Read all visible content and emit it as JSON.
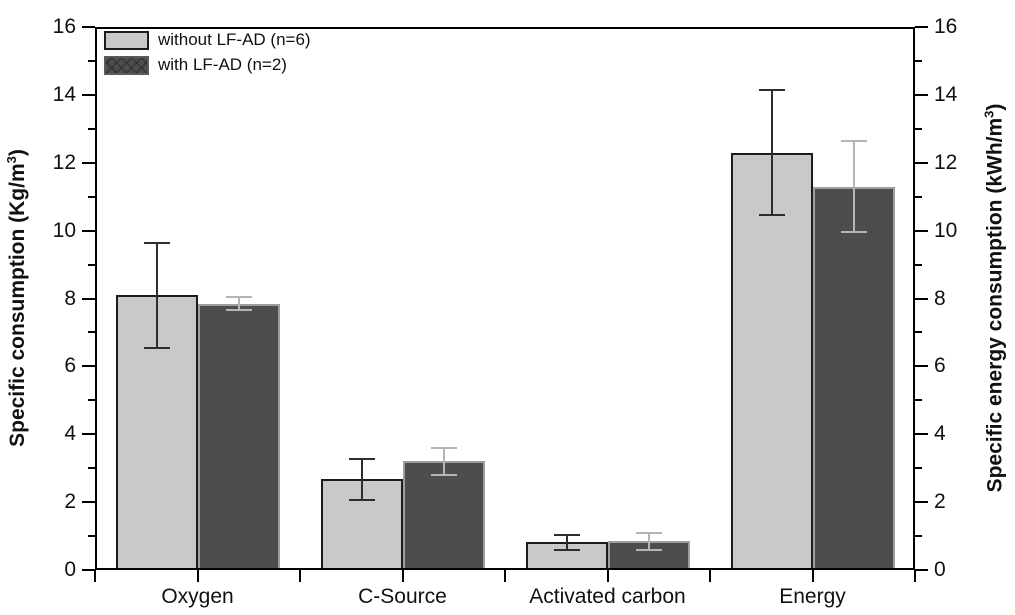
{
  "figure": {
    "background_color": "#ffffff",
    "axis_color": "#000000"
  },
  "chart_data": {
    "type": "bar",
    "title": "",
    "categories": [
      "Oxygen",
      "C-Source",
      "Activated carbon",
      "Energy"
    ],
    "series": [
      {
        "name": "without LF-AD (n=6)",
        "values": [
          8.1,
          2.67,
          0.82,
          12.3
        ],
        "errors": [
          1.55,
          0.6,
          0.22,
          1.85
        ],
        "fill_color": "#c9c9c9",
        "border_color": "#1c1c1c",
        "error_color": "#2e2e2e",
        "pattern": "solid"
      },
      {
        "name": "with LF-AD (n=2)",
        "values": [
          7.85,
          3.2,
          0.85,
          11.3
        ],
        "errors": [
          0.2,
          0.4,
          0.25,
          1.35
        ],
        "fill_color": "#4d4d4d",
        "border_color": "#9e9e9e",
        "error_color": "#b5b5b5",
        "pattern": "crosshatch"
      }
    ],
    "y_axis_left": {
      "label_pre": "Specific consumption (Kg/m",
      "label_sup": "3",
      "label_post": ")",
      "min": 0,
      "max": 16,
      "major_ticks": [
        0,
        2,
        4,
        6,
        8,
        10,
        12,
        14,
        16
      ],
      "minor_step": 1
    },
    "y_axis_right": {
      "label_pre": "Specific energy consumption (kWh/m",
      "label_sup": "3",
      "label_post": ")",
      "min": 0,
      "max": 16,
      "major_ticks": [
        0,
        2,
        4,
        6,
        8,
        10,
        12,
        14,
        16
      ],
      "minor_step": 1
    },
    "x_axis": {
      "tick_marks": "category centers and boundaries"
    },
    "legend": {
      "position": "top-left",
      "entries": [
        "without LF-AD (n=6)",
        "with LF-AD (n=2)"
      ]
    },
    "grid": false,
    "frame": true
  }
}
